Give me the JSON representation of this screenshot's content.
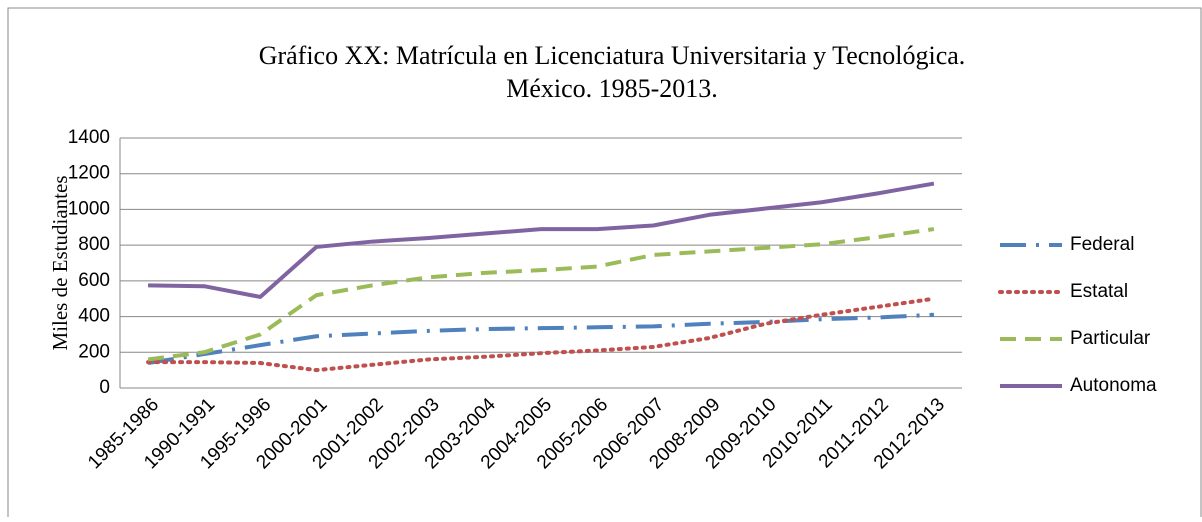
{
  "chart_data": {
    "type": "line",
    "title": "Gráfico XX: Matrícula en Licenciatura Universitaria y Tecnológica.",
    "subtitle": "México. 1985-2013.",
    "y_label": "Miles de Estudiantes",
    "categories": [
      "1985-1986",
      "1990-1991",
      "1995-1996",
      "2000-2001",
      "2001-2002",
      "2002-2003",
      "2003-2004",
      "2004-2005",
      "2005-2006",
      "2006-2007",
      "2008-2009",
      "2009-2010",
      "2010-2011",
      "2011-2012",
      "2012-2013"
    ],
    "series": [
      {
        "name": "Federal",
        "color": "#4f81bd",
        "dash": "dash-dot",
        "values": [
          140,
          190,
          240,
          290,
          305,
          320,
          330,
          335,
          340,
          345,
          360,
          370,
          385,
          395,
          410
        ]
      },
      {
        "name": "Estatal",
        "color": "#c0504d",
        "dash": "dot",
        "values": [
          145,
          145,
          140,
          100,
          130,
          160,
          175,
          195,
          210,
          230,
          280,
          360,
          410,
          455,
          500
        ]
      },
      {
        "name": "Particular",
        "color": "#9bbb59",
        "dash": "dash",
        "values": [
          160,
          200,
          300,
          520,
          575,
          620,
          645,
          660,
          680,
          745,
          765,
          785,
          805,
          845,
          890
        ]
      },
      {
        "name": "Autonoma",
        "color": "#8064a2",
        "dash": "solid",
        "values": [
          575,
          570,
          510,
          790,
          820,
          840,
          865,
          890,
          890,
          910,
          970,
          1005,
          1040,
          1090,
          1145
        ]
      }
    ],
    "ylim": [
      0,
      1400
    ],
    "yticks": [
      0,
      200,
      400,
      600,
      800,
      1000,
      1200,
      1400
    ],
    "grid": true,
    "legend": "right"
  }
}
